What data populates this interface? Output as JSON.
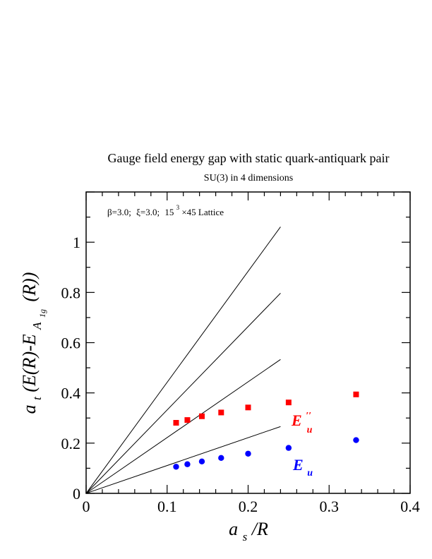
{
  "chart_data": {
    "type": "scatter",
    "title": "Gauge field energy gap with static quark-antiquark pair",
    "subtitle": "SU(3) in 4 dimensions",
    "annotation": {
      "beta": "β=3.0;",
      "xi": "ξ=3.0;",
      "lattice_base": "15",
      "lattice_exp": "3",
      "lattice_rest": "×45 Lattice"
    },
    "xlabel": {
      "main": "a",
      "sub": "s",
      "rest": "/R"
    },
    "ylabel": {
      "main1": "a",
      "sub1": "t",
      "mid": "(E(R)-E",
      "sub2": "A",
      "sub3": "1g",
      "end": "(R))"
    },
    "xlim": [
      0,
      0.4
    ],
    "ylim": [
      0,
      1.2
    ],
    "x_ticks": [
      0,
      0.1,
      0.2,
      0.3,
      0.4
    ],
    "x_tick_labels": [
      "0",
      "0.1",
      "0.2",
      "0.3",
      "0.4"
    ],
    "y_ticks": [
      0,
      0.2,
      0.4,
      0.6,
      0.8,
      1.0
    ],
    "y_tick_labels": [
      "0",
      "0.2",
      "0.4",
      "0.6",
      "0.8",
      "1"
    ],
    "grid": false,
    "series": [
      {
        "name": "E″u",
        "label_main": "E",
        "label_prime": "′′",
        "label_sub": "u",
        "marker": "square",
        "color": "#ff0000",
        "x": [
          0.1111,
          0.125,
          0.1429,
          0.1667,
          0.2,
          0.25,
          0.3333
        ],
        "y": [
          0.281,
          0.292,
          0.307,
          0.322,
          0.342,
          0.362,
          0.394
        ]
      },
      {
        "name": "Eu",
        "label_main": "E",
        "label_sub": "u",
        "marker": "circle",
        "color": "#0000ff",
        "x": [
          0.1111,
          0.125,
          0.1429,
          0.1667,
          0.2,
          0.25,
          0.3333
        ],
        "y": [
          0.106,
          0.116,
          0.127,
          0.141,
          0.158,
          0.181,
          0.212
        ]
      }
    ],
    "reference_lines": [
      {
        "x0": 0,
        "y0": 0,
        "x1": 0.24,
        "y1": 1.061
      },
      {
        "x0": 0,
        "y0": 0,
        "x1": 0.24,
        "y1": 0.797
      },
      {
        "x0": 0,
        "y0": 0,
        "x1": 0.24,
        "y1": 0.533
      },
      {
        "x0": 0,
        "y0": 0,
        "x1": 0.24,
        "y1": 0.266
      }
    ]
  }
}
